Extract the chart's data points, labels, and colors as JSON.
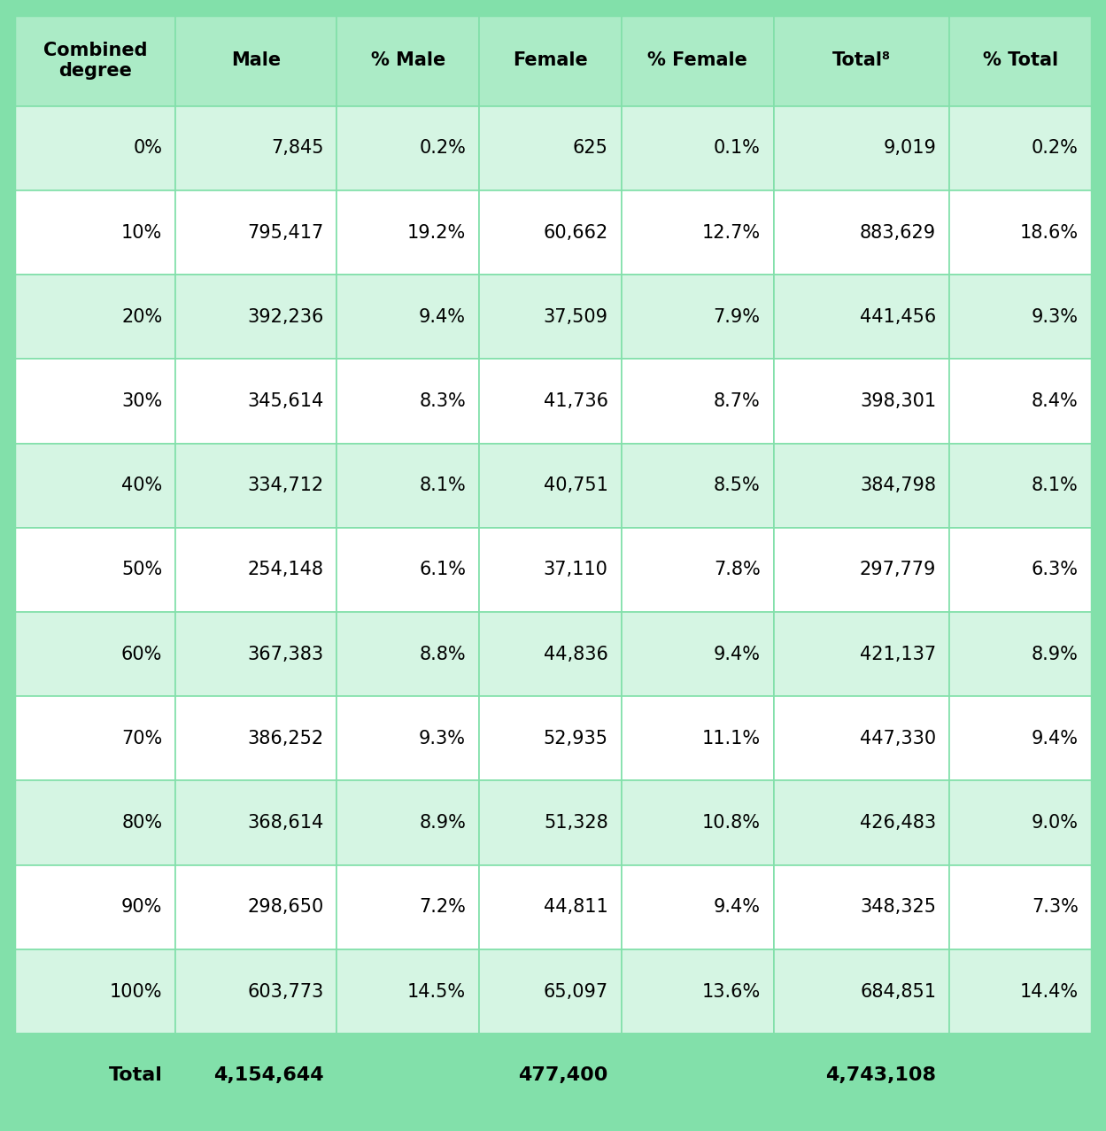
{
  "headers": [
    "Combined\ndegree",
    "Male",
    "% Male",
    "Female",
    "% Female",
    "Total⁸",
    "% Total"
  ],
  "rows": [
    [
      "0%",
      "7,845",
      "0.2%",
      "625",
      "0.1%",
      "9,019",
      "0.2%"
    ],
    [
      "10%",
      "795,417",
      "19.2%",
      "60,662",
      "12.7%",
      "883,629",
      "18.6%"
    ],
    [
      "20%",
      "392,236",
      "9.4%",
      "37,509",
      "7.9%",
      "441,456",
      "9.3%"
    ],
    [
      "30%",
      "345,614",
      "8.3%",
      "41,736",
      "8.7%",
      "398,301",
      "8.4%"
    ],
    [
      "40%",
      "334,712",
      "8.1%",
      "40,751",
      "8.5%",
      "384,798",
      "8.1%"
    ],
    [
      "50%",
      "254,148",
      "6.1%",
      "37,110",
      "7.8%",
      "297,779",
      "6.3%"
    ],
    [
      "60%",
      "367,383",
      "8.8%",
      "44,836",
      "9.4%",
      "421,137",
      "8.9%"
    ],
    [
      "70%",
      "386,252",
      "9.3%",
      "52,935",
      "11.1%",
      "447,330",
      "9.4%"
    ],
    [
      "80%",
      "368,614",
      "8.9%",
      "51,328",
      "10.8%",
      "426,483",
      "9.0%"
    ],
    [
      "90%",
      "298,650",
      "7.2%",
      "44,811",
      "9.4%",
      "348,325",
      "7.3%"
    ],
    [
      "100%",
      "603,773",
      "14.5%",
      "65,097",
      "13.6%",
      "684,851",
      "14.4%"
    ]
  ],
  "footer_labels": [
    "Total",
    "4,154,644",
    "",
    "477,400",
    "",
    "4,743,108",
    ""
  ],
  "header_color": "#abebc6",
  "row_color_even": "#d5f5e3",
  "row_color_odd": "#ffffff",
  "footer_color": "#82e0aa",
  "border_color": "#82e0aa",
  "outer_bg_color": "#82e0aa",
  "text_color": "#000000",
  "header_fontsize": 15,
  "cell_fontsize": 15,
  "footer_fontsize": 16,
  "figsize": [
    12.49,
    12.77
  ],
  "dpi": 100
}
